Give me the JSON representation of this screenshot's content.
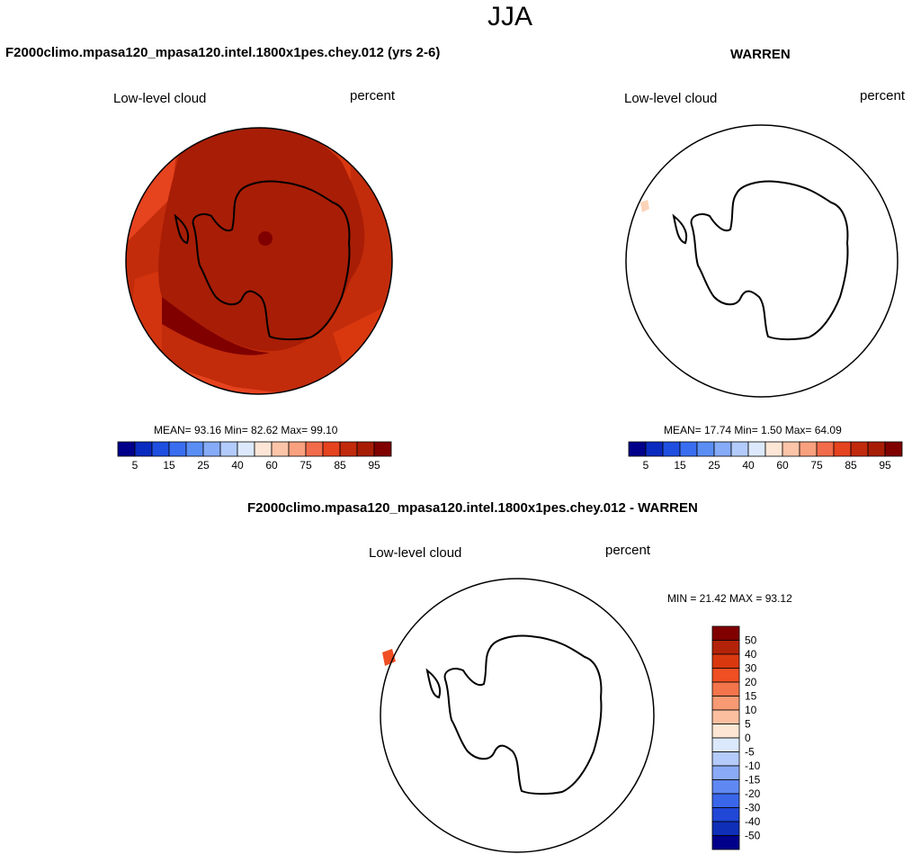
{
  "season": "JJA",
  "panels": {
    "test": {
      "title": "F2000climo.mpasa120_mpasa120.intel.1800x1pes.chey.012 (yrs 2-6)",
      "variable": "Low-level cloud",
      "units": "percent",
      "stats": "MEAN=  93.16  Min=  82.62  Max=  99.10"
    },
    "obs": {
      "title": "WARREN",
      "variable": "Low-level cloud",
      "units": "percent",
      "stats": "MEAN=  17.74  Min=   1.50  Max=  64.09"
    },
    "diff": {
      "title": "F2000climo.mpasa120_mpasa120.intel.1800x1pes.chey.012 - WARREN",
      "variable": "Low-level cloud",
      "units": "percent",
      "stats": "MIN =  21.42 MAX =  93.12"
    }
  },
  "chart_data": [
    {
      "type": "heatmap",
      "projection": "south-polar-stereographic",
      "title": "F2000climo.mpasa120_mpasa120.intel.1800x1pes.chey.012 (yrs 2-6)",
      "variable": "Low-level cloud",
      "units": "percent",
      "mean": 93.16,
      "min": 82.62,
      "max": 99.1,
      "colorbar": {
        "orientation": "horizontal",
        "levels": [
          5,
          10,
          15,
          20,
          25,
          30,
          40,
          50,
          60,
          70,
          75,
          80,
          85,
          90,
          95
        ],
        "tick_labels": [
          "5",
          "15",
          "25",
          "40",
          "60",
          "75",
          "85",
          "95"
        ],
        "colors": [
          "#00008b",
          "#0a2bbf",
          "#1f4fe0",
          "#3a6ef0",
          "#5a8ef5",
          "#86abf8",
          "#b2cbfb",
          "#dce9fc",
          "#fde6d6",
          "#fcc4a8",
          "#f9a07e",
          "#f26b4a",
          "#e6431f",
          "#c12a0c",
          "#a81d06",
          "#800000"
        ]
      }
    },
    {
      "type": "heatmap",
      "projection": "south-polar-stereographic",
      "title": "WARREN",
      "variable": "Low-level cloud",
      "units": "percent",
      "mean": 17.74,
      "min": 1.5,
      "max": 64.09,
      "colorbar": {
        "orientation": "horizontal",
        "levels": [
          5,
          10,
          15,
          20,
          25,
          30,
          40,
          50,
          60,
          70,
          75,
          80,
          85,
          90,
          95
        ],
        "tick_labels": [
          "5",
          "15",
          "25",
          "40",
          "60",
          "75",
          "85",
          "95"
        ]
      }
    },
    {
      "type": "heatmap",
      "projection": "south-polar-stereographic",
      "title": "F2000climo.mpasa120_mpasa120.intel.1800x1pes.chey.012 - WARREN",
      "variable": "Low-level cloud",
      "units": "percent",
      "min": 21.42,
      "max": 93.12,
      "colorbar": {
        "orientation": "vertical",
        "levels": [
          50,
          40,
          30,
          20,
          15,
          10,
          5,
          0,
          -5,
          -10,
          -15,
          -20,
          -30,
          -40,
          -50
        ],
        "tick_labels": [
          "50",
          "40",
          "30",
          "20",
          "15",
          "10",
          "5",
          "0",
          "-5",
          "-10",
          "-15",
          "-20",
          "-30",
          "-40",
          "-50"
        ],
        "colors": [
          "#800000",
          "#b3230a",
          "#d9380f",
          "#ef4f22",
          "#f4744c",
          "#f89a74",
          "#fbbf9f",
          "#fde6d3",
          "#dce9fc",
          "#b4cbfb",
          "#8aaaf7",
          "#5f88f2",
          "#3a66ea",
          "#2047d6",
          "#0f2fb8",
          "#00008b"
        ]
      }
    }
  ]
}
